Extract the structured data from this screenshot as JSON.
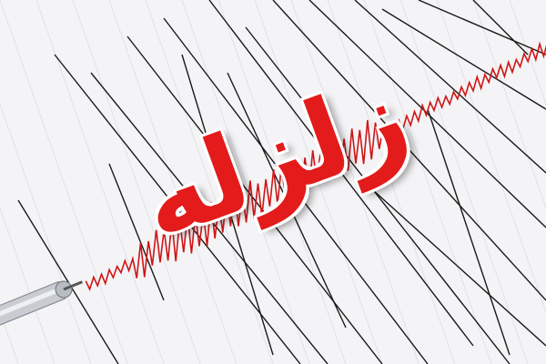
{
  "title": "زلزله",
  "colors": {
    "background": "#f4f4f6",
    "trace_lines": "#1a1a1a",
    "trace_signal": "#d01515",
    "title": "#e31b1b"
  },
  "icons": [
    "seismograph-stylus"
  ]
}
